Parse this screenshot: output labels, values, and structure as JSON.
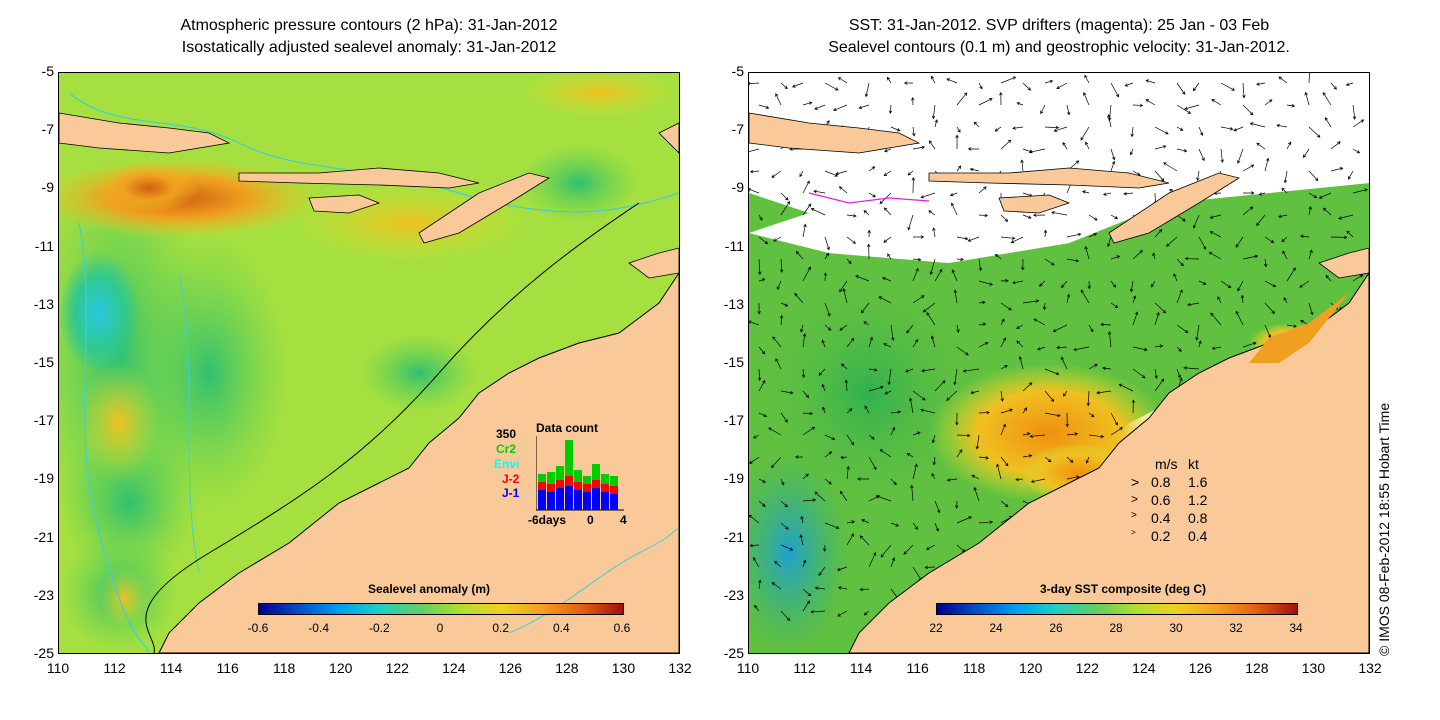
{
  "left_panel": {
    "title_line1": "Atmospheric pressure contours (2 hPa): 31-Jan-2012",
    "title_line2": "Isostatically adjusted sealevel anomaly: 31-Jan-2012",
    "colorbar_title": "Sealevel anomaly (m)",
    "colorbar_ticks": [
      "-0.6",
      "-0.4",
      "-0.2",
      "0",
      "0.2",
      "0.4",
      "0.6"
    ],
    "data_count": {
      "title": "Data count",
      "max_label": "350",
      "missions": [
        {
          "name": "Cr2",
          "color": "#00cc00"
        },
        {
          "name": "Envi",
          "color": "#00ffff"
        },
        {
          "name": "J-2",
          "color": "#ff0000"
        },
        {
          "name": "J-1",
          "color": "#0000ff"
        }
      ],
      "x_labels": [
        "-6days",
        "0",
        "4"
      ]
    }
  },
  "right_panel": {
    "title_line1": "SST: 31-Jan-2012. SVP drifters (magenta): 25 Jan - 03 Feb",
    "title_line2": "Sealevel contours (0.1 m) and geostrophic velocity: 31-Jan-2012.",
    "colorbar_title": "3-day SST composite (deg C)",
    "colorbar_ticks": [
      "22",
      "24",
      "26",
      "28",
      "30",
      "32",
      "34"
    ],
    "velocity_legend": {
      "header_ms": "m/s",
      "header_kt": "kt",
      "rows": [
        {
          "ms": "0.8",
          "kt": "1.6"
        },
        {
          "ms": "0.6",
          "kt": "1.2"
        },
        {
          "ms": "0.4",
          "kt": "0.8"
        },
        {
          "ms": "0.2",
          "kt": "0.4"
        }
      ]
    }
  },
  "axes": {
    "y_ticks": [
      "-5",
      "-7",
      "-9",
      "-11",
      "-13",
      "-15",
      "-17",
      "-19",
      "-21",
      "-23",
      "-25"
    ],
    "x_ticks": [
      "110",
      "112",
      "114",
      "116",
      "118",
      "120",
      "122",
      "124",
      "126",
      "128",
      "130",
      "132"
    ]
  },
  "credit": "© IMOS 08-Feb-2012 18:55 Hobart Time",
  "colors": {
    "land": "#f9c99a",
    "ocean_anomaly_base": "#9be03a",
    "sst_warm": "#f0a020",
    "contour_cyan": "#40d0d0"
  }
}
